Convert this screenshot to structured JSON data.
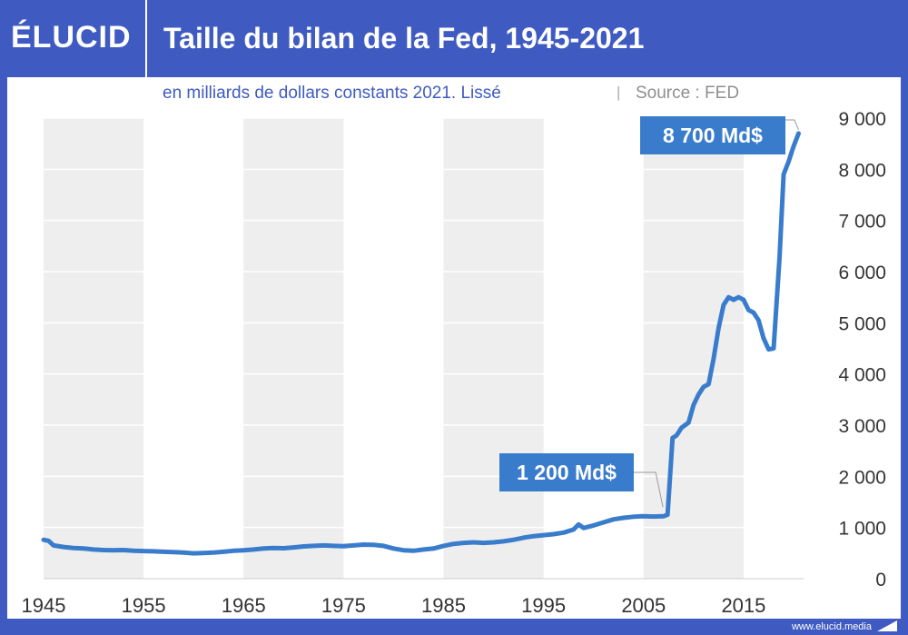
{
  "header": {
    "logo": "ÉLUCID",
    "title": "Taille du bilan de la Fed, 1945-2021"
  },
  "subtitle": {
    "description": "en milliards de dollars constants 2021. Lissé",
    "separator": "|",
    "source": "Source : FED"
  },
  "footer": {
    "url": "www.elucid.media"
  },
  "colors": {
    "brand": "#3f5bc2",
    "line": "#3a7ccc",
    "band": "#eeeeee",
    "callout": "#3a7ccc"
  },
  "chart_data": {
    "type": "line",
    "title": "Taille du bilan de la Fed, 1945-2021",
    "subtitle": "en milliards de dollars constants 2021. Lissé",
    "xlabel": "",
    "ylabel": "",
    "xlim": [
      1945,
      2021
    ],
    "ylim": [
      0,
      9000
    ],
    "x_ticks": [
      1945,
      1955,
      1965,
      1975,
      1985,
      1995,
      2005,
      2015
    ],
    "x_tick_labels": [
      "1945",
      "1955",
      "1965",
      "1975",
      "1985",
      "1995",
      "2005",
      "2015"
    ],
    "y_ticks": [
      0,
      1000,
      2000,
      3000,
      4000,
      5000,
      6000,
      7000,
      8000,
      9000
    ],
    "y_tick_labels": [
      "0",
      "1 000",
      "2 000",
      "3 000",
      "4 000",
      "5 000",
      "6 000",
      "7 000",
      "8 000",
      "9 000"
    ],
    "y_axis_position": "right",
    "grid": true,
    "alternating_decade_bands": true,
    "series": [
      {
        "points": [
          [
            1945,
            760
          ],
          [
            1945.5,
            740
          ],
          [
            1946,
            650
          ],
          [
            1947,
            620
          ],
          [
            1948,
            600
          ],
          [
            1949,
            590
          ],
          [
            1950,
            570
          ],
          [
            1951,
            560
          ],
          [
            1952,
            555
          ],
          [
            1953,
            560
          ],
          [
            1954,
            545
          ],
          [
            1955,
            540
          ],
          [
            1956,
            535
          ],
          [
            1957,
            525
          ],
          [
            1958,
            520
          ],
          [
            1959,
            510
          ],
          [
            1960,
            495
          ],
          [
            1961,
            500
          ],
          [
            1962,
            510
          ],
          [
            1963,
            525
          ],
          [
            1964,
            545
          ],
          [
            1965,
            555
          ],
          [
            1966,
            570
          ],
          [
            1967,
            590
          ],
          [
            1968,
            600
          ],
          [
            1969,
            595
          ],
          [
            1970,
            610
          ],
          [
            1971,
            630
          ],
          [
            1972,
            640
          ],
          [
            1973,
            650
          ],
          [
            1974,
            640
          ],
          [
            1975,
            635
          ],
          [
            1976,
            650
          ],
          [
            1977,
            665
          ],
          [
            1978,
            660
          ],
          [
            1979,
            640
          ],
          [
            1980,
            590
          ],
          [
            1981,
            555
          ],
          [
            1982,
            545
          ],
          [
            1983,
            570
          ],
          [
            1984,
            590
          ],
          [
            1985,
            640
          ],
          [
            1986,
            680
          ],
          [
            1987,
            700
          ],
          [
            1988,
            710
          ],
          [
            1989,
            700
          ],
          [
            1990,
            710
          ],
          [
            1991,
            730
          ],
          [
            1992,
            760
          ],
          [
            1993,
            800
          ],
          [
            1994,
            830
          ],
          [
            1995,
            850
          ],
          [
            1996,
            870
          ],
          [
            1997,
            900
          ],
          [
            1998,
            960
          ],
          [
            1998.5,
            1060
          ],
          [
            1999,
            990
          ],
          [
            2000,
            1040
          ],
          [
            2001,
            1100
          ],
          [
            2002,
            1160
          ],
          [
            2003,
            1190
          ],
          [
            2004,
            1210
          ],
          [
            2005,
            1220
          ],
          [
            2006,
            1215
          ],
          [
            2007,
            1220
          ],
          [
            2007.4,
            1250
          ],
          [
            2007.9,
            2750
          ],
          [
            2008.3,
            2800
          ],
          [
            2008.8,
            2950
          ],
          [
            2009.5,
            3050
          ],
          [
            2010,
            3400
          ],
          [
            2010.5,
            3600
          ],
          [
            2011,
            3750
          ],
          [
            2011.5,
            3800
          ],
          [
            2012,
            4300
          ],
          [
            2012.5,
            4900
          ],
          [
            2013,
            5350
          ],
          [
            2013.5,
            5500
          ],
          [
            2014,
            5450
          ],
          [
            2014.5,
            5500
          ],
          [
            2015,
            5450
          ],
          [
            2015.5,
            5250
          ],
          [
            2016,
            5200
          ],
          [
            2016.5,
            5050
          ],
          [
            2017,
            4700
          ],
          [
            2017.5,
            4480
          ],
          [
            2018,
            4500
          ],
          [
            2018.6,
            6300
          ],
          [
            2019,
            7900
          ],
          [
            2019.5,
            8150
          ],
          [
            2020,
            8450
          ],
          [
            2020.5,
            8700
          ]
        ]
      }
    ],
    "annotations": [
      {
        "label": "8 700 Md$",
        "x": 2020.5,
        "y": 8700
      },
      {
        "label": "1 200 Md$",
        "x": 2007.3,
        "y": 1220
      }
    ]
  }
}
